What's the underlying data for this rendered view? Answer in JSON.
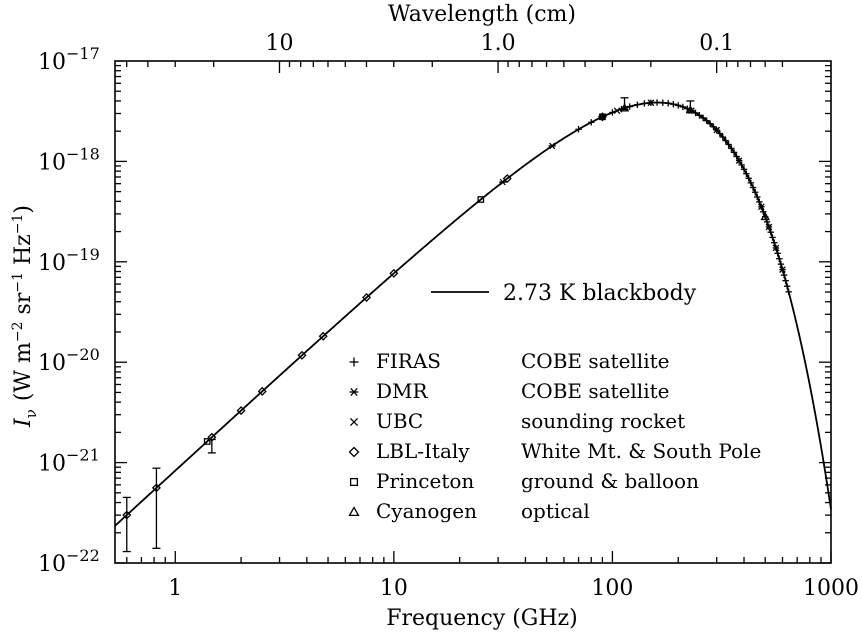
{
  "chart_data": {
    "type": "scatter",
    "title": "",
    "xlabel": "Frequency (GHz)",
    "x2label": "Wavelength (cm)",
    "ylabel": "I_ν (W m^-2 sr^-1 Hz^-1)",
    "ylabel_parts": {
      "sym": "I",
      "sub": "ν",
      "open": "(W m",
      "exp1": "−2",
      "mid": " sr",
      "exp2": "−1",
      "unit": " Hz",
      "exp3": "−1",
      "close": ")"
    },
    "xscale": "log",
    "yscale": "log",
    "xlim": [
      0.53,
      1000
    ],
    "ylim": [
      1e-22,
      1e-17
    ],
    "x_ticks": [
      {
        "value": 1,
        "label": "1"
      },
      {
        "value": 10,
        "label": "10"
      },
      {
        "value": 100,
        "label": "100"
      },
      {
        "value": 1000,
        "label": "1000"
      }
    ],
    "x2_ticks": [
      {
        "freq_ghz": 3,
        "label": "10"
      },
      {
        "freq_ghz": 30,
        "label": "1.0"
      },
      {
        "freq_ghz": 300,
        "label": "0.1"
      }
    ],
    "y_ticks": [
      {
        "value": 1e-17,
        "base": "10",
        "exp": "−17"
      },
      {
        "value": 1e-18,
        "base": "10",
        "exp": "−18"
      },
      {
        "value": 1e-19,
        "base": "10",
        "exp": "−19"
      },
      {
        "value": 1e-20,
        "base": "10",
        "exp": "−20"
      },
      {
        "value": 1e-21,
        "base": "10",
        "exp": "−21"
      },
      {
        "value": 1e-22,
        "base": "10",
        "exp": "−22"
      }
    ],
    "curve": {
      "name": "2.73 K  blackbody",
      "temperature_K": 2.73
    },
    "legend_placement": "center",
    "legend": [
      {
        "marker": "plus",
        "name": "FIRAS",
        "desc": "COBE satellite"
      },
      {
        "marker": "asterisk",
        "name": "DMR",
        "desc": "COBE satellite"
      },
      {
        "marker": "cross",
        "name": "UBC",
        "desc": "sounding rocket"
      },
      {
        "marker": "diamond",
        "name": "LBL-Italy",
        "desc": "White Mt. & South Pole"
      },
      {
        "marker": "square",
        "name": "Princeton",
        "desc": "ground & balloon"
      },
      {
        "marker": "triangle",
        "name": "Cyanogen",
        "desc": "optical"
      }
    ],
    "series": [
      {
        "name": "FIRAS",
        "marker": "plus",
        "x": [
          70,
          80,
          90,
          100,
          110,
          120,
          130,
          140,
          150,
          160,
          170,
          180,
          190,
          200,
          210,
          220,
          230,
          240,
          250,
          260,
          270,
          280,
          290,
          300,
          310,
          320,
          330,
          340,
          350,
          360,
          370,
          380,
          390,
          400,
          410,
          420,
          430,
          440,
          450,
          460,
          470,
          480,
          490,
          500,
          510,
          520,
          530,
          540,
          550,
          560,
          570,
          580,
          590,
          600,
          610,
          620,
          630,
          640
        ]
      },
      {
        "name": "DMR",
        "marker": "asterisk",
        "x": [
          31.5,
          53,
          90
        ]
      },
      {
        "name": "UBC",
        "marker": "cross",
        "x": [
          105,
          150,
          230,
          300,
          380,
          480,
          520,
          560,
          600
        ]
      },
      {
        "name": "LBL-Italy",
        "marker": "diamond",
        "x": [
          0.6,
          0.82,
          1.47,
          2.0,
          2.5,
          3.8,
          4.75,
          7.5,
          10.0,
          33.0,
          90.0
        ]
      },
      {
        "name": "Princeton",
        "marker": "square",
        "x": [
          1.4,
          25.0,
          90.0
        ]
      },
      {
        "name": "Cyanogen",
        "marker": "triangle",
        "x": [
          113.6,
          227.3,
          500.0
        ]
      }
    ],
    "error_bars": [
      {
        "x": 0.6,
        "lo": 1.3e-22,
        "hi": 4.5e-22
      },
      {
        "x": 0.82,
        "lo": 1.4e-22,
        "hi": 8.8e-22
      },
      {
        "x": 1.47,
        "lo": 1.25e-21,
        "hi": 1.7e-21
      },
      {
        "x": 113.6,
        "lo": 3.3e-18,
        "hi": 4.3e-18
      },
      {
        "x": 227.3,
        "lo": 3.1e-18,
        "hi": 4e-18
      }
    ],
    "grid": false
  }
}
